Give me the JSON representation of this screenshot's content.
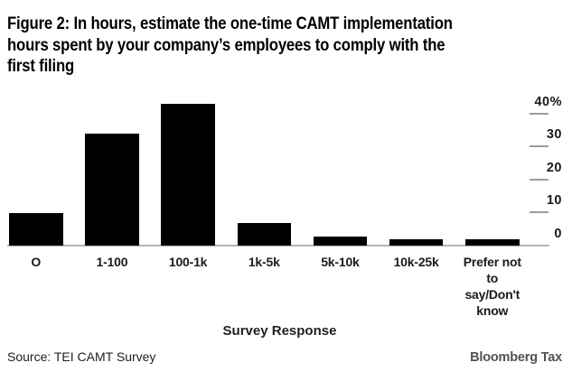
{
  "title": "Figure 2: In hours, estimate the one-time CAMT implementation\nhours spent by your company’s employees to comply with the\nfirst filing",
  "chart_data": {
    "type": "bar",
    "categories": [
      "O",
      "1-100",
      "100-1k",
      "1k-5k",
      "5k-10k",
      "10k-25k",
      "Prefer not\nto\nsay/Don't\nknow"
    ],
    "values": [
      10,
      34,
      43,
      7,
      3,
      2,
      2
    ],
    "unit": "%",
    "title": "Figure 2: In hours, estimate the one-time CAMT implementation hours spent by your company’s employees to comply with the first filing",
    "xlabel": "Survey Response",
    "ylabel": "",
    "ylim": [
      0,
      44
    ],
    "yticks": {
      "values": [
        40,
        30,
        20,
        10,
        0
      ],
      "labels": [
        "40%",
        "30",
        "20",
        "10",
        "0"
      ]
    },
    "yaxis_side": "right",
    "grid": false,
    "legend": false,
    "bar_color": "#000000"
  },
  "footer": {
    "source": "Source: TEI CAMT Survey",
    "brand": "Bloomberg Tax"
  },
  "colors": {
    "bar": "#000000",
    "axis_line": "#b5b5b5",
    "tick_dash": "#9c9c9c",
    "label_text": "#1a1a1a",
    "brand_text": "#515256"
  }
}
